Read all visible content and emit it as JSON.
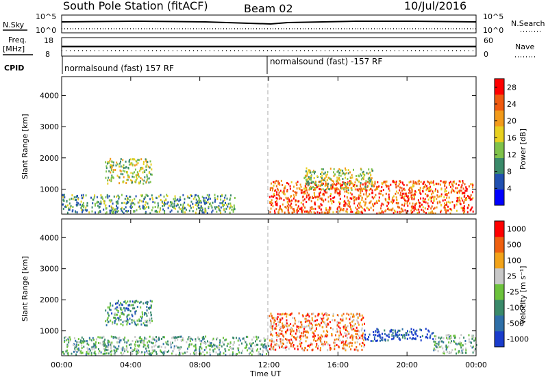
{
  "header": {
    "station": "South Pole Station (fitACF)",
    "beam": "Beam 02",
    "date": "10/Jul/2016"
  },
  "top_panels": {
    "nsky_label": "N.Sky",
    "nsky_ticks": [
      "10^5",
      "10^0"
    ],
    "nsearch_label": "N.Search",
    "nsearch_ticks": [
      "10^5",
      "10^0"
    ],
    "freq_label_line1": "Freq.",
    "freq_label_line2": "[MHz]",
    "freq_ticks": [
      "18",
      "8"
    ],
    "nave_label": "Nave",
    "nave_ticks": [
      "60",
      "0"
    ],
    "cpid_label": "CPID",
    "cpid_segments": [
      {
        "start_hour": 0,
        "label": "normalsound (fast) 157 RF"
      },
      {
        "start_hour": 12,
        "label": "normalsound (fast) -157 RF"
      }
    ]
  },
  "chart_data": [
    {
      "type": "heatmap",
      "panel": "power",
      "xlabel": "",
      "ylabel": "Slant Range [km]",
      "xlim_hours": [
        0,
        24
      ],
      "ylim": [
        200,
        4600
      ],
      "yticks": [
        1000,
        2000,
        3000,
        4000
      ],
      "colorbar": {
        "label": "Power [dB]",
        "ticks": [
          4,
          8,
          12,
          16,
          20,
          24,
          28
        ],
        "range": [
          0,
          30
        ],
        "colors": [
          "#0000ff",
          "#2150b0",
          "#3a8a6a",
          "#7fc24a",
          "#e8d020",
          "#f29a1a",
          "#ef5a10",
          "#ff0000"
        ]
      },
      "echo_regions": [
        {
          "h0": 0.0,
          "h1": 10.0,
          "r0": 250,
          "r1": 850,
          "level": 0.35
        },
        {
          "h0": 2.5,
          "h1": 5.2,
          "r0": 1200,
          "r1": 2000,
          "level": 0.5
        },
        {
          "h0": 12.0,
          "h1": 23.8,
          "r0": 250,
          "r1": 1300,
          "level": 0.8
        },
        {
          "h0": 14.0,
          "h1": 18.0,
          "r0": 1000,
          "r1": 1700,
          "level": 0.5
        }
      ]
    },
    {
      "type": "heatmap",
      "panel": "velocity",
      "xlabel": "Time UT",
      "ylabel": "Slant Range [km]",
      "xlim_hours": [
        0,
        24
      ],
      "ylim": [
        200,
        4600
      ],
      "yticks": [
        1000,
        2000,
        3000,
        4000
      ],
      "xticks": [
        "00:00",
        "04:00",
        "08:00",
        "12:00",
        "16:00",
        "20:00",
        "00:00"
      ],
      "colorbar": {
        "label": "Velocity [m s⁻¹]",
        "ticks": [
          "1000",
          "500",
          "100",
          "25",
          "-25",
          "-100",
          "-500",
          "-1000"
        ],
        "colors": [
          "#1a3ccc",
          "#2e6fa8",
          "#3a8a6a",
          "#6cc23c",
          "#c8c8c8",
          "#f2a31a",
          "#ef6010",
          "#ff0000"
        ]
      },
      "echo_regions": [
        {
          "h0": 0.0,
          "h1": 12.0,
          "r0": 250,
          "r1": 850,
          "level": 0.4
        },
        {
          "h0": 2.5,
          "h1": 5.2,
          "r0": 1200,
          "r1": 2000,
          "level": 0.3
        },
        {
          "h0": 12.0,
          "h1": 17.5,
          "r0": 400,
          "r1": 1600,
          "level": 0.75
        },
        {
          "h0": 17.5,
          "h1": 21.5,
          "r0": 700,
          "r1": 1100,
          "level": 0.1
        },
        {
          "h0": 21.5,
          "h1": 24.0,
          "r0": 300,
          "r1": 900,
          "level": 0.4
        }
      ]
    }
  ]
}
